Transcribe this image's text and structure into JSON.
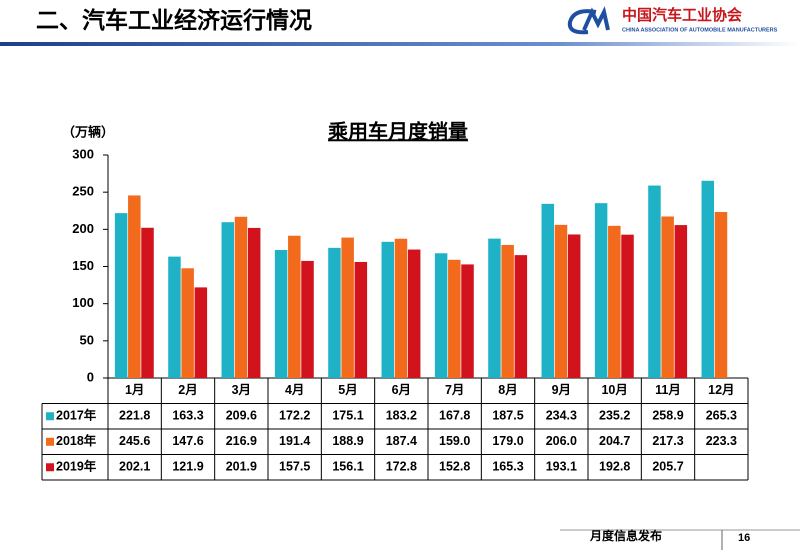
{
  "header": {
    "title": "二、汽车工业经济运行情况",
    "org_name": "中国汽车工业协会",
    "org_name_en": "CHINA ASSOCIATION OF AUTOMOBILE MANUFACTURERS"
  },
  "footer": {
    "label": "月度信息发布",
    "page": "16"
  },
  "chart_data": {
    "type": "bar",
    "title": "乘用车月度销量",
    "y_unit": "（万辆）",
    "categories": [
      "1月",
      "2月",
      "3月",
      "4月",
      "5月",
      "6月",
      "7月",
      "8月",
      "9月",
      "10月",
      "11月",
      "12月"
    ],
    "series": [
      {
        "name": "2017年",
        "color": "#1fb2c6",
        "values": [
          221.8,
          163.3,
          209.6,
          172.2,
          175.1,
          183.2,
          167.8,
          187.5,
          234.3,
          235.2,
          258.9,
          265.3
        ],
        "value_labels": [
          "221.8",
          "163.3",
          "209.6",
          "172.2",
          "175.1",
          "183.2",
          "167.8",
          "187.5",
          "234.3",
          "235.2",
          "258.9",
          "265.3"
        ]
      },
      {
        "name": "2018年",
        "color": "#f26b1d",
        "values": [
          245.6,
          147.6,
          216.9,
          191.4,
          188.9,
          187.4,
          159.0,
          179.0,
          206.0,
          204.7,
          217.3,
          223.3
        ],
        "value_labels": [
          "245.6",
          "147.6",
          "216.9",
          "191.4",
          "188.9",
          "187.4",
          "159.0",
          "179.0",
          "206.0",
          "204.7",
          "217.3",
          "223.3"
        ]
      },
      {
        "name": "2019年",
        "color": "#d2121c",
        "values": [
          202.1,
          121.9,
          201.9,
          157.5,
          156.1,
          172.8,
          152.8,
          165.3,
          193.1,
          192.8,
          205.7,
          null
        ],
        "value_labels": [
          "202.1",
          "121.9",
          "201.9",
          "157.5",
          "156.1",
          "172.8",
          "152.8",
          "165.3",
          "193.1",
          "192.8",
          "205.7",
          null
        ]
      }
    ],
    "ylim": [
      0,
      300
    ],
    "yticks": [
      0,
      50,
      100,
      150,
      200,
      250,
      300
    ],
    "grid": false
  }
}
